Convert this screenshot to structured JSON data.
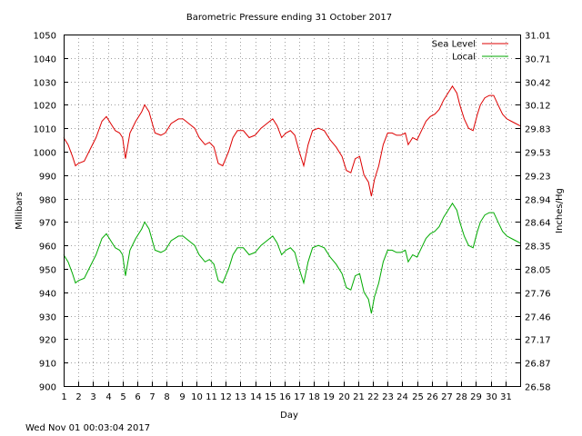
{
  "chart_data": {
    "type": "line",
    "title": "Barometric Pressure ending 31 October 2017",
    "xlabel": "Day",
    "ylabel": "Millibars",
    "y2label": "Inches/Hg",
    "xlim": [
      1,
      32
    ],
    "ylim": [
      900,
      1050
    ],
    "x_ticks": [
      "1",
      "2",
      "3",
      "4",
      "5",
      "6",
      "7",
      "8",
      "9",
      "10",
      "11",
      "12",
      "13",
      "14",
      "15",
      "16",
      "17",
      "18",
      "19",
      "20",
      "21",
      "22",
      "23",
      "24",
      "25",
      "26",
      "27",
      "28",
      "29",
      "30",
      "31"
    ],
    "y_ticks": [
      900,
      910,
      920,
      930,
      940,
      950,
      960,
      970,
      980,
      990,
      1000,
      1010,
      1020,
      1030,
      1040,
      1050
    ],
    "y2_ticks": [
      "26.58",
      "26.87",
      "27.17",
      "27.46",
      "27.76",
      "28.05",
      "28.35",
      "28.64",
      "28.94",
      "29.23",
      "29.53",
      "29.83",
      "30.12",
      "30.42",
      "30.71",
      "31.01"
    ],
    "grid": true,
    "legend_position": "top-right",
    "timestamp": "Wed Nov 01 00:03:04 2017",
    "series": [
      {
        "name": "Sea Level",
        "color": "#dd0000",
        "x": [
          1,
          1.3,
          1.6,
          1.8,
          2.0,
          2.4,
          2.8,
          3.2,
          3.6,
          3.9,
          4.2,
          4.5,
          4.8,
          5.0,
          5.2,
          5.5,
          5.9,
          6.3,
          6.5,
          6.8,
          7.2,
          7.6,
          7.9,
          8.3,
          8.8,
          9.1,
          9.5,
          9.9,
          10.2,
          10.6,
          10.9,
          11.2,
          11.5,
          11.8,
          12.2,
          12.5,
          12.8,
          13.2,
          13.6,
          14.0,
          14.4,
          14.8,
          15.2,
          15.5,
          15.8,
          16.1,
          16.4,
          16.7,
          17.0,
          17.3,
          17.6,
          17.9,
          18.3,
          18.7,
          19.1,
          19.5,
          19.9,
          20.2,
          20.5,
          20.8,
          21.1,
          21.4,
          21.7,
          21.9,
          22.1,
          22.4,
          22.7,
          23.0,
          23.3,
          23.6,
          23.9,
          24.2,
          24.4,
          24.7,
          25.0,
          25.3,
          25.6,
          25.9,
          26.2,
          26.5,
          26.8,
          27.1,
          27.4,
          27.7,
          27.9,
          28.2,
          28.5,
          28.8,
          29.1,
          29.3,
          29.6,
          29.9,
          30.2,
          30.5,
          30.8,
          31.1,
          31.4,
          31.7,
          32.0
        ],
        "values": [
          1006,
          1003,
          998,
          994,
          995,
          996,
          1001,
          1006,
          1013,
          1015,
          1012,
          1009,
          1008,
          1006,
          997,
          1008,
          1013,
          1017,
          1020,
          1017,
          1008,
          1007,
          1008,
          1012,
          1014,
          1014,
          1012,
          1010,
          1006,
          1003,
          1004,
          1002,
          995,
          994,
          1000,
          1006,
          1009,
          1009,
          1006,
          1007,
          1010,
          1012,
          1014,
          1011,
          1006,
          1008,
          1009,
          1007,
          1000,
          994,
          1003,
          1009,
          1010,
          1009,
          1005,
          1002,
          998,
          992,
          991,
          997,
          998,
          990,
          987,
          981,
          988,
          994,
          1003,
          1008,
          1008,
          1007,
          1007,
          1008,
          1003,
          1006,
          1005,
          1009,
          1013,
          1015,
          1016,
          1018,
          1022,
          1025,
          1028,
          1025,
          1020,
          1014,
          1010,
          1009,
          1016,
          1020,
          1023,
          1024,
          1024,
          1020,
          1016,
          1014,
          1013,
          1012,
          1011
        ]
      },
      {
        "name": "Local",
        "color": "#00aa00",
        "x": [
          1,
          1.3,
          1.6,
          1.8,
          2.0,
          2.4,
          2.8,
          3.2,
          3.6,
          3.9,
          4.2,
          4.5,
          4.8,
          5.0,
          5.2,
          5.5,
          5.9,
          6.3,
          6.5,
          6.8,
          7.2,
          7.6,
          7.9,
          8.3,
          8.8,
          9.1,
          9.5,
          9.9,
          10.2,
          10.6,
          10.9,
          11.2,
          11.5,
          11.8,
          12.2,
          12.5,
          12.8,
          13.2,
          13.6,
          14.0,
          14.4,
          14.8,
          15.2,
          15.5,
          15.8,
          16.1,
          16.4,
          16.7,
          17.0,
          17.3,
          17.6,
          17.9,
          18.3,
          18.7,
          19.1,
          19.5,
          19.9,
          20.2,
          20.5,
          20.8,
          21.1,
          21.4,
          21.7,
          21.9,
          22.1,
          22.4,
          22.7,
          23.0,
          23.3,
          23.6,
          23.9,
          24.2,
          24.4,
          24.7,
          25.0,
          25.3,
          25.6,
          25.9,
          26.2,
          26.5,
          26.8,
          27.1,
          27.4,
          27.7,
          27.9,
          28.2,
          28.5,
          28.8,
          29.1,
          29.3,
          29.6,
          29.9,
          30.2,
          30.5,
          30.8,
          31.1,
          31.4,
          31.7,
          32.0
        ],
        "values": [
          956,
          953,
          948,
          944,
          945,
          946,
          951,
          956,
          963,
          965,
          962,
          959,
          958,
          956,
          947,
          958,
          963,
          967,
          970,
          967,
          958,
          957,
          958,
          962,
          964,
          964,
          962,
          960,
          956,
          953,
          954,
          952,
          945,
          944,
          950,
          956,
          959,
          959,
          956,
          957,
          960,
          962,
          964,
          961,
          956,
          958,
          959,
          957,
          950,
          944,
          953,
          959,
          960,
          959,
          955,
          952,
          948,
          942,
          941,
          947,
          948,
          940,
          937,
          931,
          938,
          944,
          953,
          958,
          958,
          957,
          957,
          958,
          953,
          956,
          955,
          959,
          963,
          965,
          966,
          968,
          972,
          975,
          978,
          975,
          970,
          964,
          960,
          959,
          966,
          970,
          973,
          974,
          974,
          970,
          966,
          964,
          963,
          962,
          961
        ]
      }
    ]
  }
}
